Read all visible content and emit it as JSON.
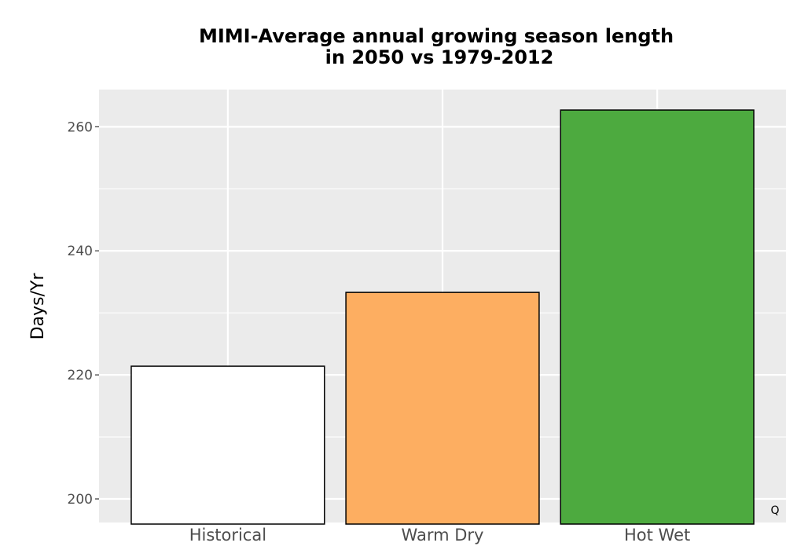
{
  "chart_data": {
    "type": "bar",
    "title_lines": [
      "MIMI-Average annual growing season length",
      "in 2050 vs 1979-2012"
    ],
    "xlabel": "",
    "ylabel": "Days/Yr",
    "categories": [
      "Historical",
      "Warm Dry",
      "Hot Wet"
    ],
    "values": [
      221.4,
      233.3,
      262.7
    ],
    "colors": [
      "#ffffff",
      "#fdae61",
      "#4daa3f"
    ],
    "ylim": [
      196.2,
      266
    ],
    "yticks": [
      200,
      220,
      240,
      260
    ],
    "ytick_labels": [
      "200",
      "220",
      "240",
      "260"
    ],
    "grid": true,
    "panel_background": "#ebebeb",
    "bar_outline": "#000000"
  },
  "corner_mark": "Q"
}
